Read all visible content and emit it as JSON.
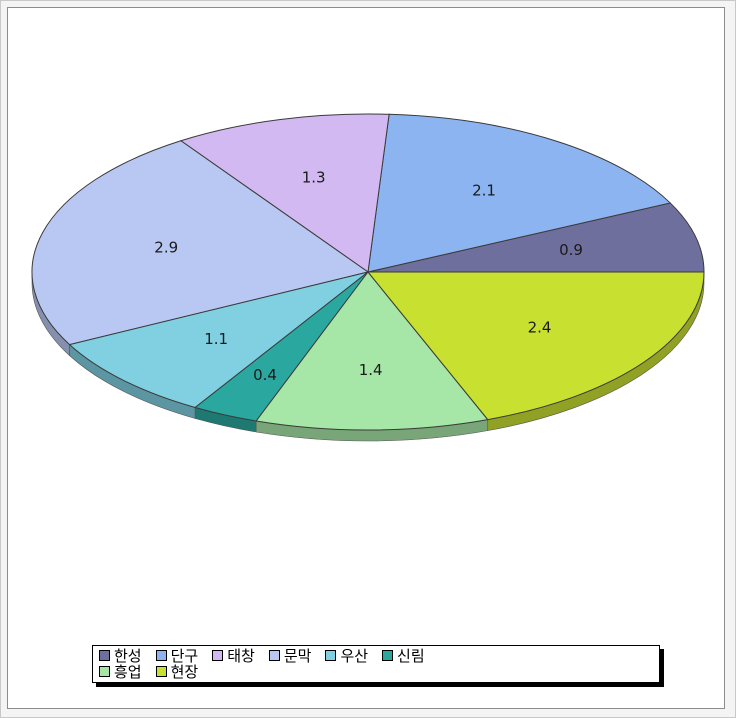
{
  "chart_data": {
    "type": "pie",
    "title": "",
    "slices": [
      {
        "label": "한성",
        "value": 0.9,
        "value_label": "0.9",
        "color": "#6f6f9e"
      },
      {
        "label": "단구",
        "value": 2.1,
        "value_label": "2.1",
        "color": "#8cb4f0"
      },
      {
        "label": "태창",
        "value": 1.3,
        "value_label": "1.3",
        "color": "#d2b9f2"
      },
      {
        "label": "문막",
        "value": 2.9,
        "value_label": "2.9",
        "color": "#b8c8f2"
      },
      {
        "label": "우산",
        "value": 1.1,
        "value_label": "1.1",
        "color": "#80d0e2"
      },
      {
        "label": "신림",
        "value": 0.4,
        "value_label": "0.4",
        "color": "#2aa8a0"
      },
      {
        "label": "흥업",
        "value": 1.4,
        "value_label": "1.4",
        "color": "#a6e6a6"
      },
      {
        "label": "현장",
        "value": 2.4,
        "value_label": "2.4",
        "color": "#c8e030"
      }
    ],
    "legend_position": "bottom"
  }
}
